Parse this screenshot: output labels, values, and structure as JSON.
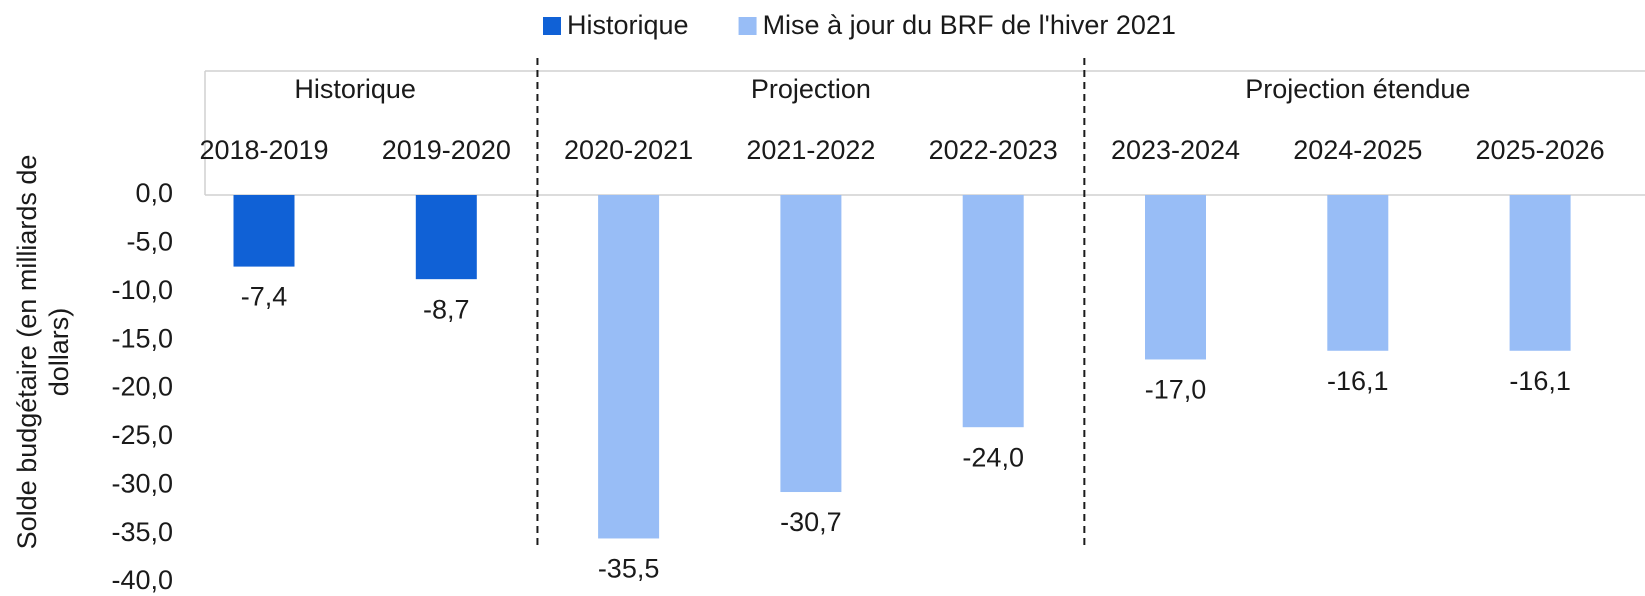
{
  "chart_data": {
    "type": "bar",
    "categories": [
      "2018-2019",
      "2019-2020",
      "2020-2021",
      "2021-2022",
      "2022-2023",
      "2023-2024",
      "2024-2025",
      "2025-2026"
    ],
    "groups": [
      {
        "label": "Historique",
        "count": 2
      },
      {
        "label": "Projection",
        "count": 3
      },
      {
        "label": "Projection étendue",
        "count": 3
      }
    ],
    "series": [
      {
        "name": "Historique",
        "color": "#1061d6",
        "values": [
          -7.4,
          -8.7,
          null,
          null,
          null,
          null,
          null,
          null
        ],
        "value_labels": [
          "-7,4",
          "-8,7",
          null,
          null,
          null,
          null,
          null,
          null
        ]
      },
      {
        "name": "Mise à jour du BRF de l'hiver 2021",
        "color": "#98bdf6",
        "values": [
          null,
          null,
          -35.5,
          -30.7,
          -24.0,
          -17.0,
          -16.1,
          -16.1
        ],
        "value_labels": [
          null,
          null,
          "-35,5",
          "-30,7",
          "-24,0",
          "-17,0",
          "-16,1",
          "-16,1"
        ]
      }
    ],
    "ylabel": [
      "Solde budgétaire (en milliards de",
      "dollars)"
    ],
    "ylim": [
      -40,
      0
    ],
    "yticks": [
      {
        "value": 0,
        "label": "0,0"
      },
      {
        "value": -5,
        "label": "-5,0"
      },
      {
        "value": -10,
        "label": "-10,0"
      },
      {
        "value": -15,
        "label": "-15,0"
      },
      {
        "value": -20,
        "label": "-20,0"
      },
      {
        "value": -25,
        "label": "-25,0"
      },
      {
        "value": -30,
        "label": "-30,0"
      },
      {
        "value": -35,
        "label": "-35,0"
      },
      {
        "value": -40,
        "label": "-40,0"
      }
    ],
    "legend": "top"
  }
}
